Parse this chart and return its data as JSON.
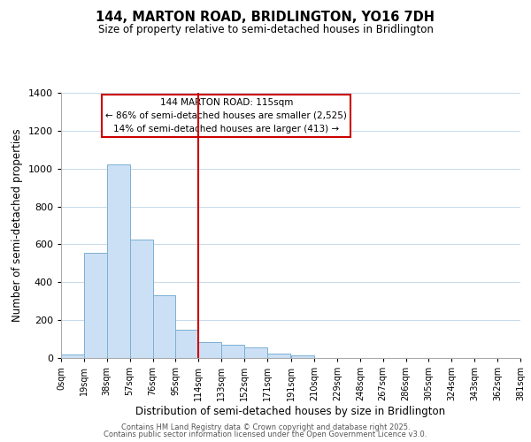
{
  "title": "144, MARTON ROAD, BRIDLINGTON, YO16 7DH",
  "subtitle": "Size of property relative to semi-detached houses in Bridlington",
  "xlabel": "Distribution of semi-detached houses by size in Bridlington",
  "ylabel": "Number of semi-detached properties",
  "bin_labels": [
    "0sqm",
    "19sqm",
    "38sqm",
    "57sqm",
    "76sqm",
    "95sqm",
    "114sqm",
    "133sqm",
    "152sqm",
    "171sqm",
    "191sqm",
    "210sqm",
    "229sqm",
    "248sqm",
    "267sqm",
    "286sqm",
    "305sqm",
    "324sqm",
    "343sqm",
    "362sqm",
    "381sqm"
  ],
  "bin_edges": [
    0,
    19,
    38,
    57,
    76,
    95,
    114,
    133,
    152,
    171,
    191,
    210,
    229,
    248,
    267,
    286,
    305,
    324,
    343,
    362,
    381
  ],
  "bar_values": [
    20,
    555,
    1020,
    625,
    330,
    150,
    82,
    68,
    55,
    25,
    15,
    0,
    0,
    0,
    0,
    0,
    0,
    0,
    0,
    0
  ],
  "bar_color": "#cce0f5",
  "bar_edgecolor": "#7ab0d4",
  "property_line_x": 114,
  "property_line_color": "#cc0000",
  "annotation_text_line1": "144 MARTON ROAD: 115sqm",
  "annotation_text_line2": "← 86% of semi-detached houses are smaller (2,525)",
  "annotation_text_line3": "14% of semi-detached houses are larger (413) →",
  "annotation_box_edgecolor": "#cc0000",
  "ylim": [
    0,
    1400
  ],
  "yticks": [
    0,
    200,
    400,
    600,
    800,
    1000,
    1200,
    1400
  ],
  "footer_line1": "Contains HM Land Registry data © Crown copyright and database right 2025.",
  "footer_line2": "Contains public sector information licensed under the Open Government Licence v3.0.",
  "background_color": "#ffffff",
  "grid_color": "#c8daea"
}
